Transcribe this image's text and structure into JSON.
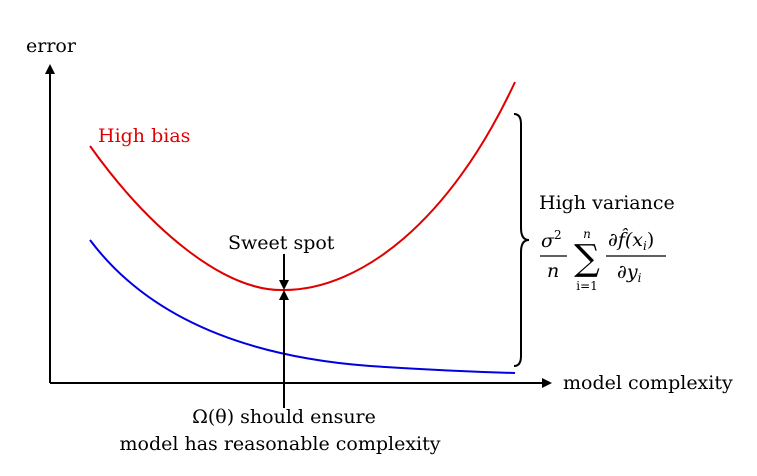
{
  "axes": {
    "y_label": "error",
    "x_label": "model complexity"
  },
  "curves": {
    "high_bias_label": "High bias",
    "high_bias_color": "#e00000",
    "variance_curve_color": "#0000e0"
  },
  "annotations": {
    "sweet_spot": "Sweet spot",
    "high_variance": "High variance",
    "regularizer_line1": "Ω(θ) should ensure",
    "regularizer_line2": "model has reasonable complexity"
  },
  "formula": {
    "sigma": "σ",
    "sigma_exp": "2",
    "n": "n",
    "sum": "∑",
    "sum_top": "n",
    "sum_bottom": "i=1",
    "numerator": "∂f̂(x",
    "numerator_sub": "i",
    "numerator_close": ")",
    "denominator": "∂y",
    "denominator_sub": "i"
  }
}
